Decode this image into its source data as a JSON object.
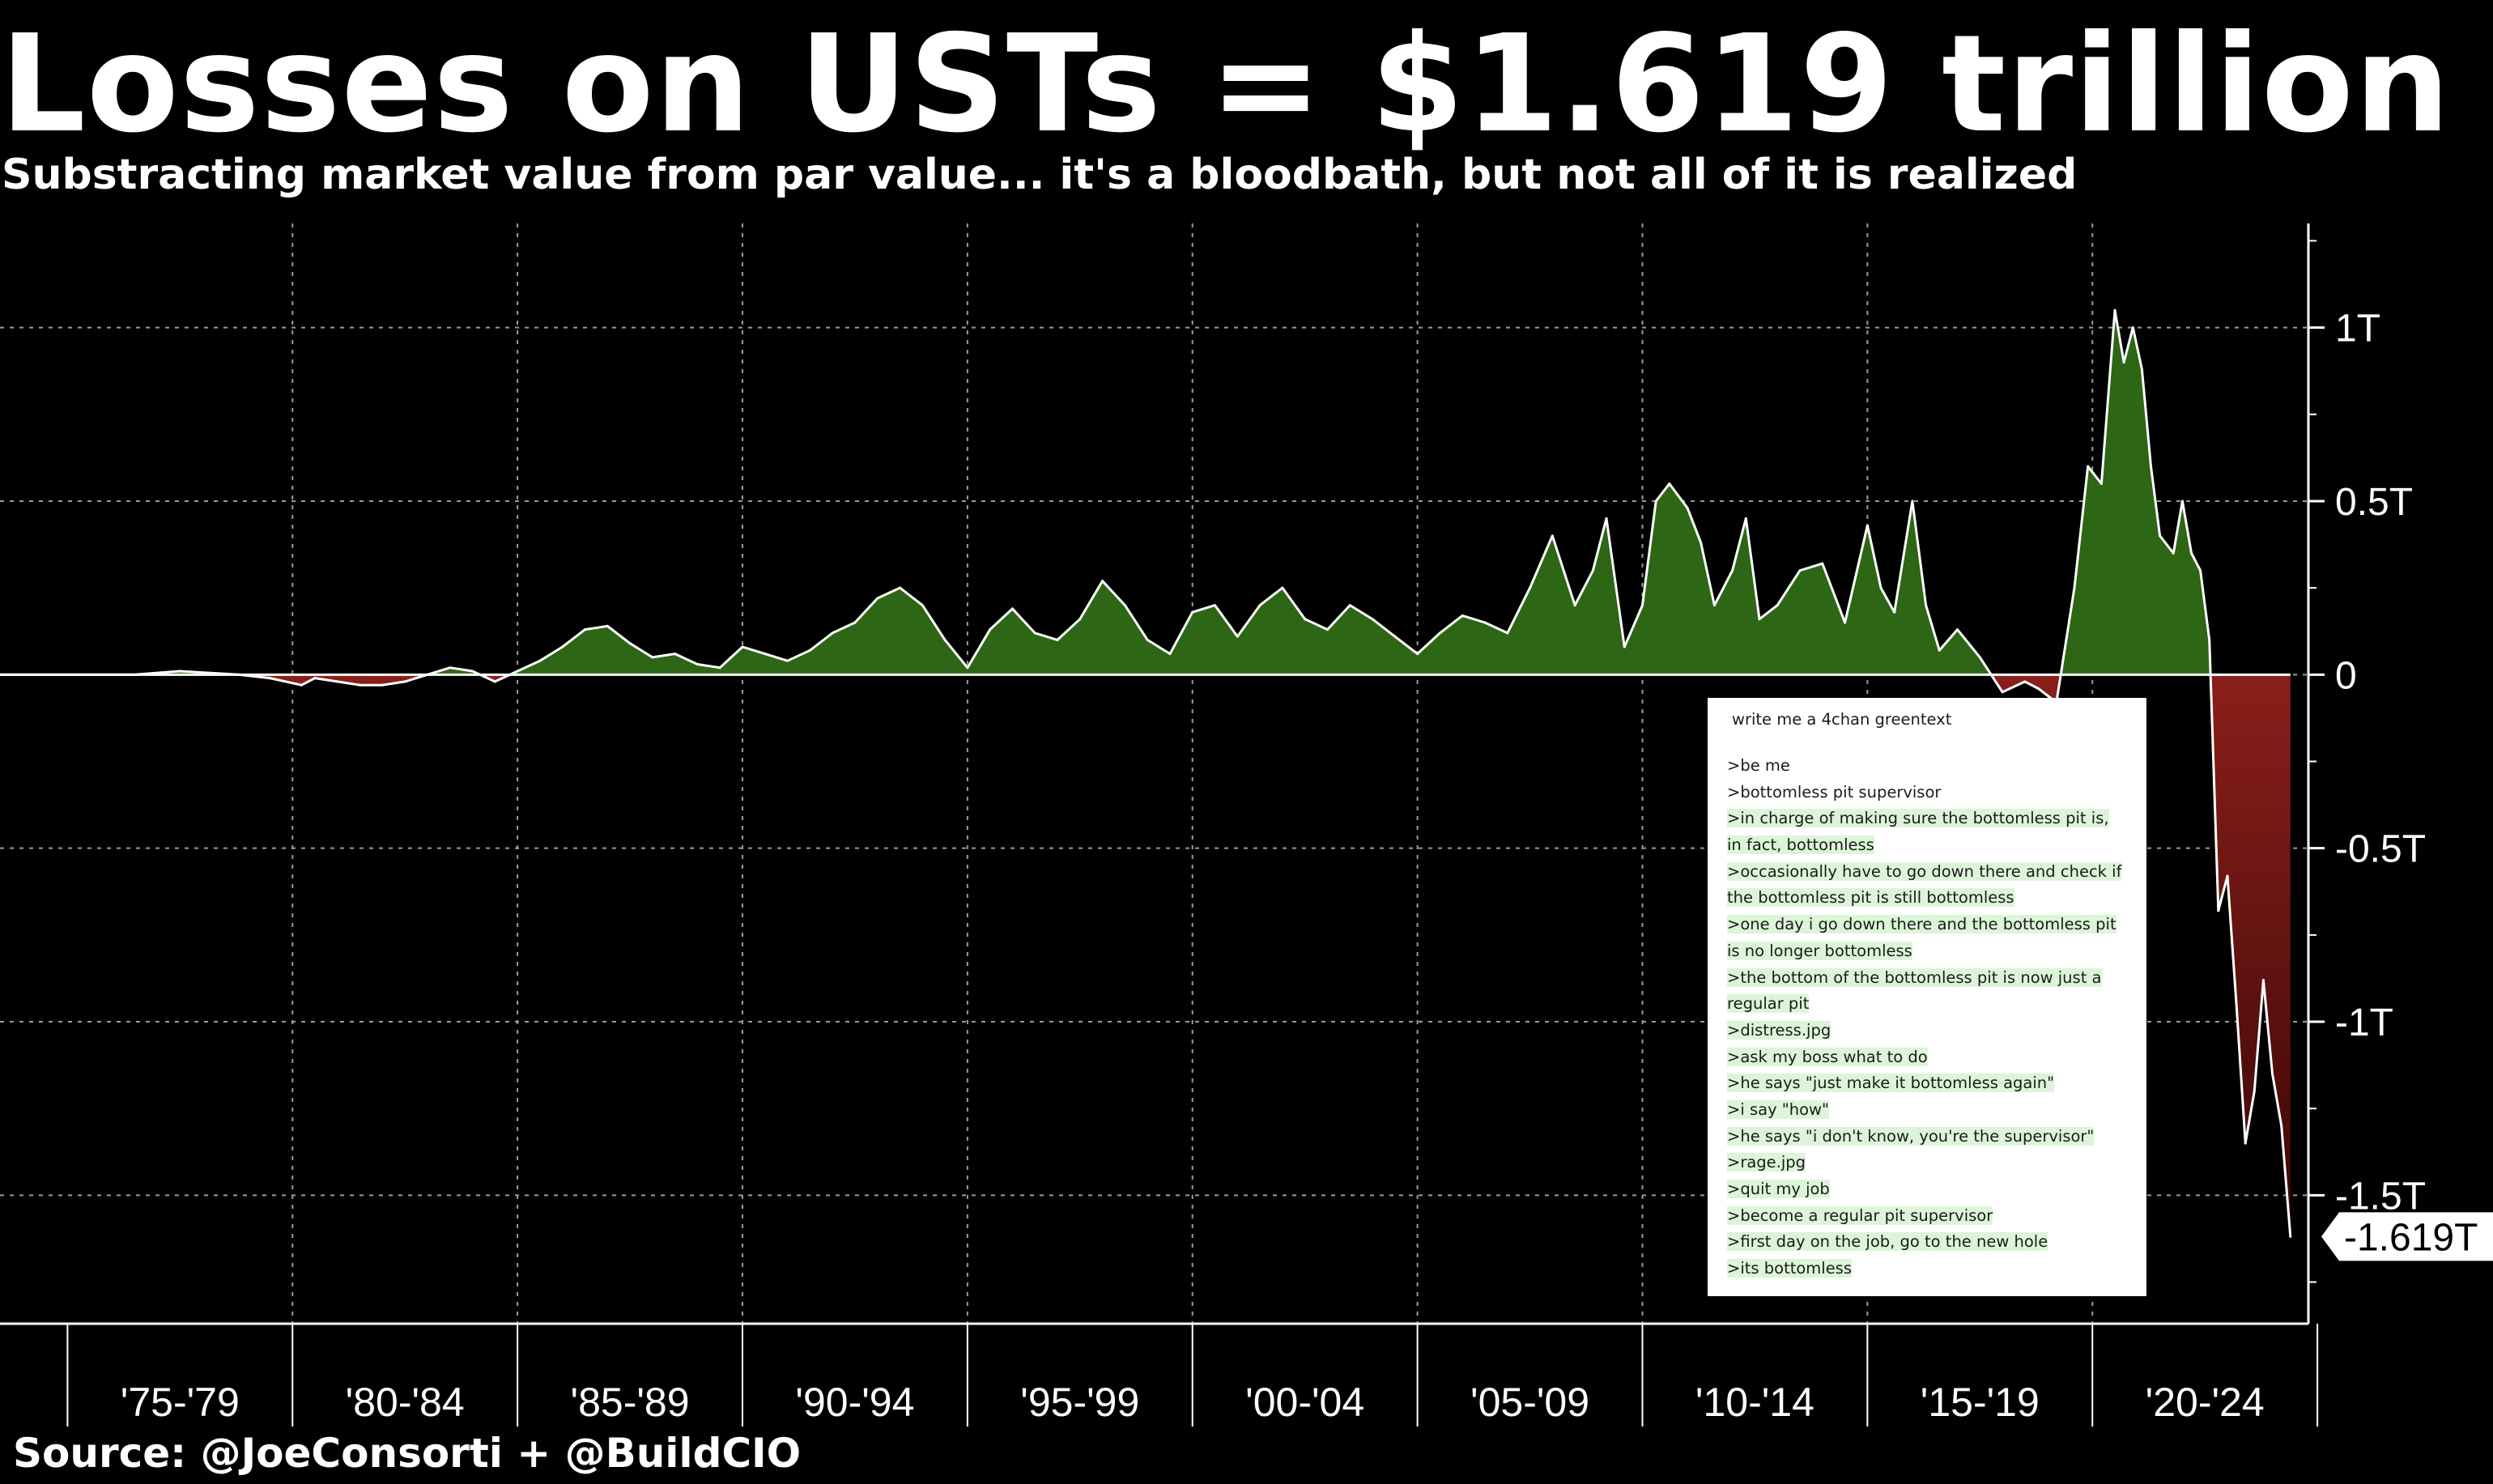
{
  "title": "Losses on USTs = $1.619 trillion",
  "subtitle": "Substracting market value from par value... it's a bloodbath, but not all of it is realized",
  "source": "Source: @JoeConsorti + @BuildCIO",
  "chart_data": {
    "type": "area",
    "title": "Losses on USTs = $1.619 trillion",
    "subtitle": "Substracting market value from par value... it's a bloodbath, but not all of it is realized",
    "x_unit": "year",
    "xlim": [
      1973.5,
      2024.8
    ],
    "ylim": [
      -1.87,
      1.3
    ],
    "y_ticks": [
      1,
      0.5,
      0,
      -0.5,
      -1,
      -1.5
    ],
    "y_tick_labels": [
      "1T",
      "0.5T",
      "0",
      "-0.5T",
      "-1T",
      "-1.5T"
    ],
    "categories": [
      "'75-'79",
      "'80-'84",
      "'85-'89",
      "'90-'94",
      "'95-'99",
      "'00-'04",
      "'05-'09",
      "'10-'14",
      "'15-'19",
      "'20-'24"
    ],
    "grid": true,
    "positive_color": "#2d6614",
    "negative_color": "#7a1a15",
    "line_color": "#ffffff",
    "last_value_label": "-1.619T",
    "series": [
      {
        "x": [
          1973.5,
          1976.5,
          1977.5,
          1978.8,
          1979.5,
          1980.2,
          1980.5,
          1981.0,
          1981.5,
          1982.0,
          1982.5,
          1983.0,
          1983.5,
          1984.0,
          1984.5,
          1985.0,
          1985.5,
          1986.0,
          1986.5,
          1987.0,
          1987.5,
          1988.0,
          1988.5,
          1989.0,
          1989.5,
          1990.0,
          1990.5,
          1991.0,
          1991.5,
          1992.0,
          1992.5,
          1993.0,
          1993.5,
          1994.0,
          1994.5,
          1995.0,
          1995.5,
          1996.0,
          1996.5,
          1997.0,
          1997.5,
          1998.0,
          1998.5,
          1999.0,
          1999.5,
          2000.0,
          2000.5,
          2001.0,
          2001.5,
          2002.0,
          2002.5,
          2003.0,
          2003.5,
          2004.0,
          2004.5,
          2005.0,
          2005.5,
          2006.0,
          2006.5,
          2007.0,
          2007.5,
          2008.0,
          2008.5,
          2008.9,
          2009.2,
          2009.6,
          2010.0,
          2010.3,
          2010.6,
          2011.0,
          2011.3,
          2011.6,
          2012.0,
          2012.3,
          2012.6,
          2013.0,
          2013.5,
          2014.0,
          2014.5,
          2015.0,
          2015.3,
          2015.6,
          2016.0,
          2016.3,
          2016.6,
          2017.0,
          2017.5,
          2018.0,
          2018.5,
          2018.8,
          2019.2,
          2019.6,
          2019.9,
          2020.2,
          2020.5,
          2020.7,
          2020.9,
          2021.1,
          2021.3,
          2021.5,
          2021.8,
          2022.0,
          2022.2,
          2022.4,
          2022.6,
          2022.8,
          2023.0,
          2023.2,
          2023.4,
          2023.6,
          2023.8,
          2024.0,
          2024.2,
          2024.4
        ],
        "y": [
          0,
          0.0,
          0.01,
          0.0,
          -0.01,
          -0.03,
          -0.01,
          -0.02,
          -0.03,
          -0.03,
          -0.02,
          0.0,
          0.02,
          0.01,
          -0.02,
          0.01,
          0.04,
          0.08,
          0.13,
          0.14,
          0.09,
          0.05,
          0.06,
          0.03,
          0.02,
          0.08,
          0.06,
          0.04,
          0.07,
          0.12,
          0.15,
          0.22,
          0.25,
          0.2,
          0.1,
          0.02,
          0.13,
          0.19,
          0.12,
          0.1,
          0.16,
          0.27,
          0.2,
          0.1,
          0.06,
          0.18,
          0.2,
          0.11,
          0.2,
          0.25,
          0.16,
          0.13,
          0.2,
          0.16,
          0.11,
          0.06,
          0.12,
          0.17,
          0.15,
          0.12,
          0.25,
          0.4,
          0.2,
          0.3,
          0.45,
          0.08,
          0.2,
          0.5,
          0.55,
          0.48,
          0.38,
          0.2,
          0.3,
          0.45,
          0.16,
          0.2,
          0.3,
          0.32,
          0.15,
          0.43,
          0.25,
          0.18,
          0.5,
          0.2,
          0.07,
          0.13,
          0.05,
          -0.05,
          -0.02,
          -0.04,
          -0.08,
          0.25,
          0.6,
          0.55,
          1.05,
          0.9,
          1.0,
          0.88,
          0.6,
          0.4,
          0.35,
          0.5,
          0.35,
          0.3,
          0.1,
          -0.68,
          -0.58,
          -0.95,
          -1.35,
          -1.2,
          -0.88,
          -1.15,
          -1.3,
          -1.619
        ]
      }
    ]
  },
  "overlay": {
    "prompt": "write me a 4chan greentext",
    "lines": [
      ">be me",
      ">bottomless pit supervisor",
      ">in charge of making sure the bottomless pit is,",
      "in fact, bottomless",
      ">occasionally have to go down there and check if",
      " the bottomless pit is still bottomless",
      ">one day i go down there and the bottomless pit",
      "is no longer bottomless",
      ">the bottom of the bottomless pit is now just a",
      "regular pit",
      ">distress.jpg",
      ">ask my boss what to do",
      ">he says \"just make it bottomless again\"",
      ">i say \"how\"",
      ">he says \"i don't know, you're the supervisor\"",
      ">rage.jpg",
      ">quit my job",
      ">become a regular pit supervisor",
      ">first day on the job, go to the new hole",
      ">its  bottomless"
    ]
  }
}
